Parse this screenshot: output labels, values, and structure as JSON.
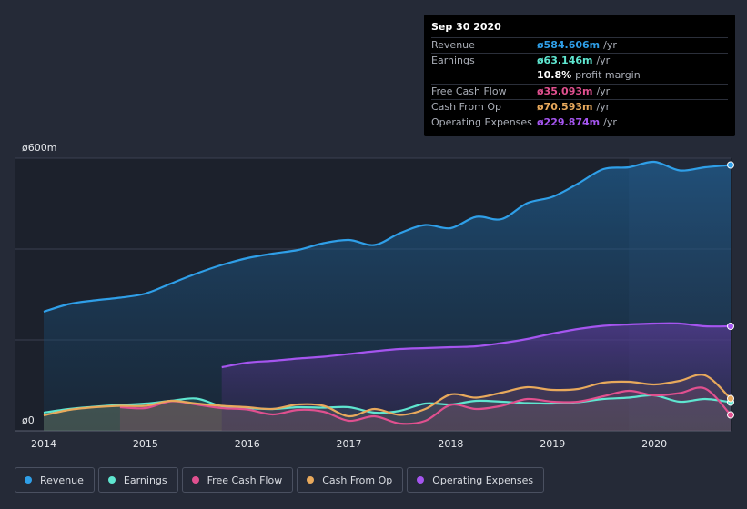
{
  "tooltip": {
    "date": "Sep 30 2020",
    "rows": [
      {
        "label": "Revenue",
        "value": "ø584.606m",
        "unit": "/yr",
        "color": "#2f9fe8"
      },
      {
        "label": "Earnings",
        "value": "ø63.146m",
        "unit": "/yr",
        "color": "#5fe6d0"
      },
      {
        "label": "",
        "value": "10.8%",
        "unit": "profit margin",
        "color": "#ffffff"
      },
      {
        "label": "Free Cash Flow",
        "value": "ø35.093m",
        "unit": "/yr",
        "color": "#e0508f"
      },
      {
        "label": "Cash From Op",
        "value": "ø70.593m",
        "unit": "/yr",
        "color": "#e8a95c"
      },
      {
        "label": "Operating Expenses",
        "value": "ø229.874m",
        "unit": "/yr",
        "color": "#a555ef"
      }
    ]
  },
  "legend": [
    {
      "label": "Revenue",
      "color": "#2f9fe8"
    },
    {
      "label": "Earnings",
      "color": "#5fe6d0"
    },
    {
      "label": "Free Cash Flow",
      "color": "#e0508f"
    },
    {
      "label": "Cash From Op",
      "color": "#e8a95c"
    },
    {
      "label": "Operating Expenses",
      "color": "#a555ef"
    }
  ],
  "chart_data": {
    "type": "area",
    "title": "",
    "xlabel": "",
    "ylabel": "",
    "ylim": [
      0,
      600
    ],
    "xlim": [
      2014.0,
      2020.75
    ],
    "y_tick_labels": [
      "ø600m",
      "ø0"
    ],
    "x_tick_labels": [
      "2014",
      "2015",
      "2016",
      "2017",
      "2018",
      "2019",
      "2020"
    ],
    "x_ticks": [
      2014,
      2015,
      2016,
      2017,
      2018,
      2019,
      2020
    ],
    "forecast_band_start": 2019.75,
    "series": [
      {
        "name": "Revenue",
        "color": "#2f9fe8",
        "x": [
          2014.0,
          2014.25,
          2014.5,
          2014.75,
          2015.0,
          2015.25,
          2015.5,
          2015.75,
          2016.0,
          2016.25,
          2016.5,
          2016.75,
          2017.0,
          2017.25,
          2017.5,
          2017.75,
          2018.0,
          2018.25,
          2018.5,
          2018.75,
          2019.0,
          2019.25,
          2019.5,
          2019.75,
          2020.0,
          2020.25,
          2020.5,
          2020.75
        ],
        "values": [
          262,
          279,
          287,
          293,
          302,
          324,
          346,
          365,
          380,
          390,
          398,
          413,
          420,
          409,
          435,
          453,
          446,
          471,
          466,
          501,
          515,
          544,
          576,
          580,
          592,
          573,
          580,
          585
        ]
      },
      {
        "name": "Earnings",
        "color": "#5fe6d0",
        "x": [
          2014.0,
          2014.25,
          2014.5,
          2014.75,
          2015.0,
          2015.25,
          2015.5,
          2015.75,
          2016.0,
          2016.25,
          2016.5,
          2016.75,
          2017.0,
          2017.25,
          2017.5,
          2017.75,
          2018.0,
          2018.25,
          2018.5,
          2018.75,
          2019.0,
          2019.25,
          2019.5,
          2019.75,
          2020.0,
          2020.25,
          2020.5,
          2020.75
        ],
        "values": [
          40,
          48,
          53,
          57,
          60,
          66,
          71,
          54,
          50,
          48,
          52,
          51,
          52,
          40,
          44,
          60,
          58,
          66,
          64,
          61,
          60,
          63,
          70,
          73,
          78,
          64,
          70,
          63
        ]
      },
      {
        "name": "Free Cash Flow",
        "color": "#e0508f",
        "x": [
          2014.75,
          2015.0,
          2015.25,
          2015.5,
          2015.75,
          2016.0,
          2016.25,
          2016.5,
          2016.75,
          2017.0,
          2017.25,
          2017.5,
          2017.75,
          2018.0,
          2018.25,
          2018.5,
          2018.75,
          2019.0,
          2019.25,
          2019.5,
          2019.75,
          2020.0,
          2020.25,
          2020.5,
          2020.75
        ],
        "values": [
          52,
          50,
          65,
          58,
          50,
          47,
          36,
          46,
          42,
          22,
          32,
          16,
          22,
          57,
          48,
          55,
          70,
          64,
          64,
          76,
          88,
          78,
          83,
          93,
          35
        ]
      },
      {
        "name": "Cash From Op",
        "color": "#e8a95c",
        "x": [
          2014.0,
          2014.25,
          2014.5,
          2014.75,
          2015.0,
          2015.25,
          2015.5,
          2015.75,
          2016.0,
          2016.25,
          2016.5,
          2016.75,
          2017.0,
          2017.25,
          2017.5,
          2017.75,
          2018.0,
          2018.25,
          2018.5,
          2018.75,
          2019.0,
          2019.25,
          2019.5,
          2019.75,
          2020.0,
          2020.25,
          2020.5,
          2020.75
        ],
        "values": [
          34,
          46,
          52,
          55,
          55,
          66,
          60,
          55,
          52,
          48,
          58,
          55,
          32,
          48,
          35,
          48,
          80,
          73,
          84,
          96,
          90,
          92,
          106,
          108,
          102,
          110,
          122,
          71
        ]
      },
      {
        "name": "Operating Expenses",
        "color": "#a555ef",
        "x": [
          2015.75,
          2016.0,
          2016.25,
          2016.5,
          2016.75,
          2017.0,
          2017.25,
          2017.5,
          2017.75,
          2018.0,
          2018.25,
          2018.5,
          2018.75,
          2019.0,
          2019.25,
          2019.5,
          2019.75,
          2020.0,
          2020.25,
          2020.5,
          2020.75
        ],
        "values": [
          140,
          150,
          154,
          159,
          163,
          169,
          175,
          180,
          182,
          184,
          186,
          193,
          202,
          214,
          224,
          231,
          234,
          236,
          236,
          230,
          230
        ]
      }
    ]
  }
}
